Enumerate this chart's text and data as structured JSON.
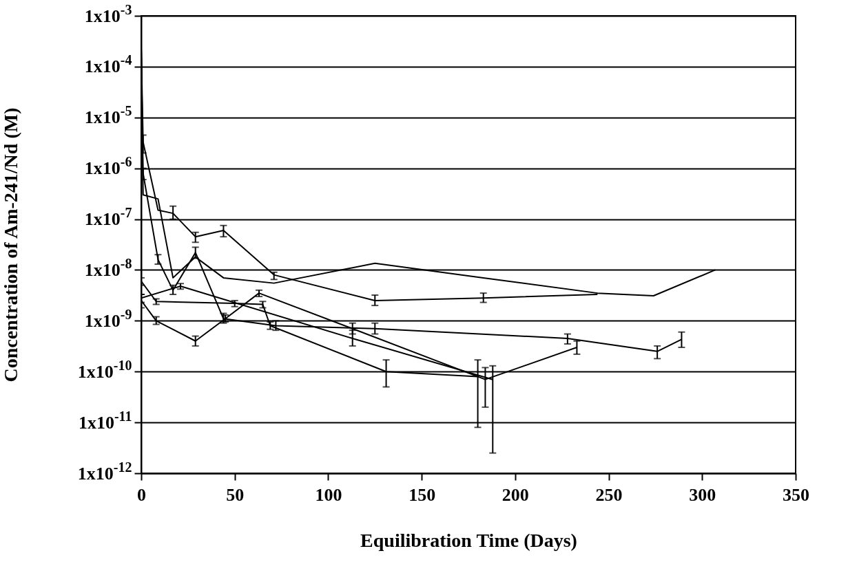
{
  "chart_data": {
    "type": "line",
    "xlabel": "Equilibration Time (Days)",
    "ylabel": "Concentration of Am-241/Nd (M)",
    "log": "y",
    "grid": "y",
    "xlim": [
      0,
      350
    ],
    "xticks": [
      0,
      50,
      100,
      150,
      200,
      250,
      300,
      350
    ],
    "ylim": [
      1e-12,
      0.001
    ],
    "yticks": [
      {
        "value": 1e-12,
        "label": "1x10$^{-12}$"
      },
      {
        "value": 1e-11,
        "label": "1x10$^{-11}$"
      },
      {
        "value": 1e-10,
        "label": "1x10$^{-10}$"
      },
      {
        "value": 1e-09,
        "label": "1x10$^{-9}$"
      },
      {
        "value": 1e-08,
        "label": "1x10$^{-8}$"
      },
      {
        "value": 1e-07,
        "label": "1x10$^{-7}$"
      },
      {
        "value": 1e-06,
        "label": "1x10$^{-6}$"
      },
      {
        "value": 1e-05,
        "label": "1x10$^{-5}$"
      },
      {
        "value": 0.0001,
        "label": "1x10$^{-4}$"
      },
      {
        "value": 0.001,
        "label": "1x10$^{-3}$"
      }
    ],
    "series": [
      {
        "color": "#000000",
        "x": [
          0,
          1,
          9,
          17,
          29,
          44,
          71,
          125,
          183,
          244,
          274,
          307
        ],
        "values": [
          0.00023,
          3e-07,
          2.5e-07,
          7e-09,
          1.8e-08,
          7e-09,
          5.5e-09,
          1.35e-08,
          7e-09,
          3.5e-09,
          3.1e-09,
          1e-08
        ]
      },
      {
        "color": "#000000",
        "x": [
          0,
          1,
          9,
          17,
          29,
          44,
          71,
          125,
          183,
          244
        ],
        "values": [
          0.00023,
          3.3e-06,
          1.5e-07,
          1.3e-07,
          4.5e-08,
          6e-08,
          8e-09,
          2.5e-09,
          2.8e-09,
          3.3e-09
        ],
        "errors": [
          null,
          [
            2e-06,
            4.5e-06
          ],
          null,
          [
            1e-07,
            1.8e-07
          ],
          [
            3.5e-08,
            5.5e-08
          ],
          [
            4.5e-08,
            7.5e-08
          ],
          [
            6.5e-09,
            9e-09
          ],
          [
            2e-09,
            3.2e-09
          ],
          [
            2.3e-09,
            3.5e-09
          ],
          null
        ]
      },
      {
        "color": "#000000",
        "x": [
          0,
          1,
          9,
          17,
          29,
          44,
          72,
          125,
          228,
          276,
          289
        ],
        "values": [
          0.00023,
          8e-07,
          1.6e-08,
          4e-09,
          2.2e-08,
          1.1e-09,
          8e-10,
          7e-10,
          4.5e-10,
          2.5e-10,
          4.3e-10
        ],
        "errors": [
          null,
          [
            6e-07,
            1e-06
          ],
          [
            1.3e-08,
            2e-08
          ],
          [
            3.3e-09,
            5e-09
          ],
          [
            1.7e-08,
            2.8e-08
          ],
          [
            9e-10,
            1.4e-09
          ],
          [
            6.5e-10,
            1e-09
          ],
          [
            5.5e-10,
            9e-10
          ],
          [
            3.5e-10,
            5.5e-10
          ],
          [
            1.8e-10,
            3.2e-10
          ],
          [
            3e-10,
            6e-10
          ]
        ]
      },
      {
        "color": "#000000",
        "x": [
          0,
          8,
          50,
          65,
          69,
          131,
          180
        ],
        "values": [
          6e-09,
          2.4e-09,
          2.2e-09,
          2.1e-09,
          8e-10,
          1e-10,
          8e-11
        ],
        "errors": [
          [
            5e-09,
            7e-09
          ],
          [
            2.1e-09,
            2.7e-09
          ],
          [
            1.9e-09,
            2.5e-09
          ],
          [
            1.8e-09,
            2.4e-09
          ],
          [
            6.8e-10,
            9.5e-10
          ],
          [
            5e-11,
            1.7e-10
          ],
          [
            8e-12,
            1.7e-10
          ]
        ]
      },
      {
        "color": "#000000",
        "x": [
          0,
          8,
          29,
          45,
          63,
          113,
          184,
          233
        ],
        "values": [
          2.5e-09,
          1e-09,
          4e-10,
          1.1e-09,
          3.5e-09,
          7e-10,
          7e-11,
          3e-10
        ],
        "errors": [
          [
            1.8e-09,
            3.3e-09
          ],
          [
            8.5e-10,
            1.2e-09
          ],
          [
            3.2e-10,
            5e-10
          ],
          [
            9.5e-10,
            1.3e-09
          ],
          [
            3e-09,
            4e-09
          ],
          [
            5.5e-10,
            9e-10
          ],
          [
            2e-11,
            1.2e-10
          ],
          [
            2.2e-10,
            4e-10
          ]
        ]
      },
      {
        "color": "#000000",
        "x": [
          0,
          21,
          113,
          188
        ],
        "values": [
          2.8e-09,
          4.8e-09,
          4.5e-10,
          7e-11
        ],
        "errors": [
          [
            2.3e-09,
            3.3e-09
          ],
          [
            4.2e-09,
            5.4e-09
          ],
          [
            3.2e-10,
            6.5e-10
          ],
          [
            2.5e-12,
            1.3e-10
          ]
        ]
      }
    ]
  }
}
